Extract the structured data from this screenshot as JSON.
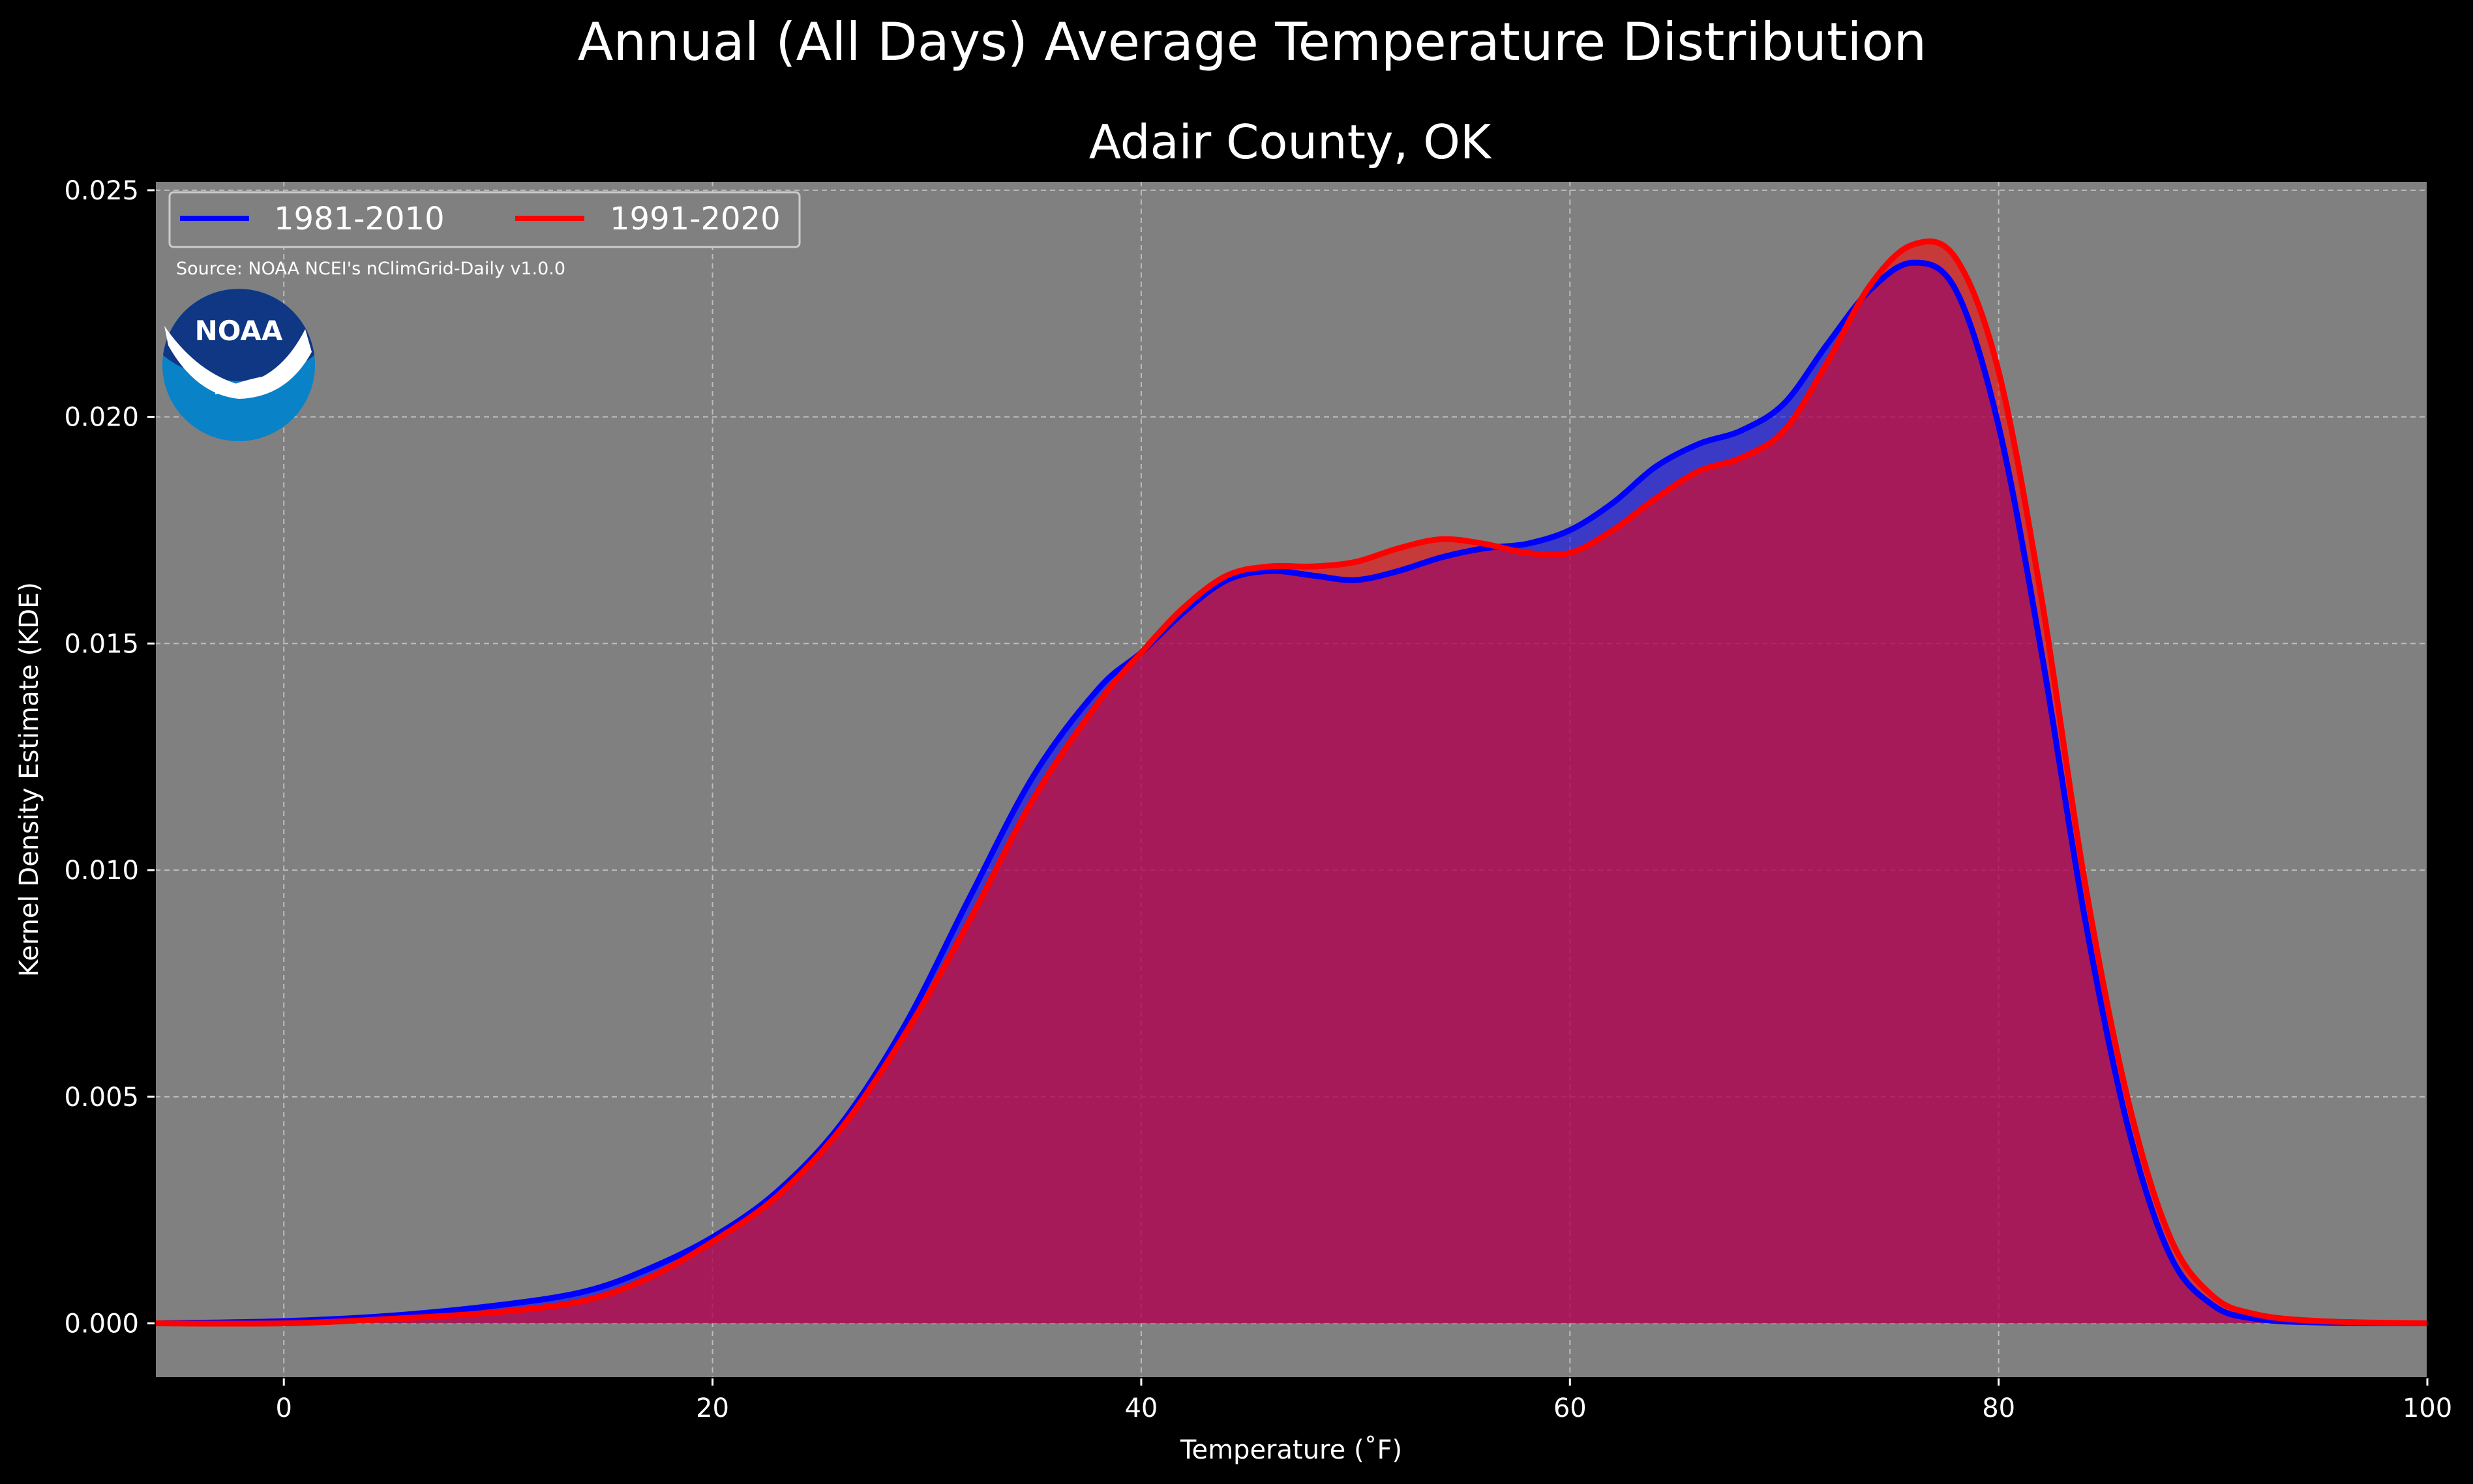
{
  "chart_data": {
    "type": "area",
    "title": "Annual (All Days) Average Temperature Distribution",
    "subtitle": "Adair County, OK",
    "xlabel": "Temperature (˚F)",
    "ylabel": "Kernel Density Estimate (KDE)",
    "xlim": [
      -6,
      100
    ],
    "ylim": [
      -0.0012,
      0.0252
    ],
    "xticks": [
      0,
      20,
      40,
      60,
      80,
      100
    ],
    "yticks": [
      "0.000",
      "0.005",
      "0.010",
      "0.015",
      "0.020",
      "0.025"
    ],
    "grid": true,
    "legend_position": "top-left",
    "source": "Source: NOAA NCEI's nClimGrid-Daily v1.0.0",
    "logo_text": "NOAA",
    "background_color": "#808080",
    "series": [
      {
        "name": "1981-2010",
        "color": "#0000ff",
        "fill": "#0000ff",
        "x": [
          -6,
          0,
          5,
          10,
          14,
          17,
          20,
          23,
          26,
          29,
          32,
          35,
          38,
          40,
          42,
          44,
          46,
          48,
          50,
          52,
          54,
          56,
          58,
          60,
          62,
          64,
          66,
          68,
          70,
          72,
          74,
          76,
          78,
          80,
          82,
          84,
          86,
          88,
          90,
          92,
          95,
          100
        ],
        "y": [
          0.0,
          5e-05,
          0.00017,
          0.0004,
          0.0007,
          0.0012,
          0.0019,
          0.0029,
          0.0044,
          0.0066,
          0.0094,
          0.0121,
          0.014,
          0.0148,
          0.0157,
          0.0164,
          0.0166,
          0.0165,
          0.0164,
          0.0166,
          0.0169,
          0.0171,
          0.0172,
          0.0175,
          0.0181,
          0.0189,
          0.0194,
          0.0197,
          0.0203,
          0.0216,
          0.0228,
          0.0234,
          0.0228,
          0.0198,
          0.0148,
          0.009,
          0.0044,
          0.0015,
          0.0004,
          0.0001,
          2e-05,
          0.0
        ]
      },
      {
        "name": "1991-2020",
        "color": "#ff0000",
        "fill": "#ff0000",
        "x": [
          -6,
          0,
          5,
          10,
          14,
          17,
          20,
          23,
          26,
          29,
          32,
          35,
          38,
          40,
          42,
          44,
          46,
          48,
          50,
          52,
          54,
          56,
          58,
          60,
          62,
          64,
          66,
          68,
          70,
          72,
          74,
          76,
          78,
          80,
          82,
          84,
          86,
          88,
          90,
          92,
          95,
          100
        ],
        "y": [
          0.0,
          0.0,
          0.0001,
          0.00025,
          0.0005,
          0.001,
          0.0018,
          0.0028,
          0.0043,
          0.0064,
          0.0089,
          0.0116,
          0.0137,
          0.0148,
          0.0158,
          0.0165,
          0.0167,
          0.0167,
          0.0168,
          0.0171,
          0.0173,
          0.0172,
          0.017,
          0.017,
          0.0175,
          0.0182,
          0.0188,
          0.0191,
          0.0197,
          0.0212,
          0.0229,
          0.0238,
          0.0235,
          0.021,
          0.016,
          0.0098,
          0.005,
          0.0019,
          0.0006,
          0.0002,
          5e-05,
          0.0
        ]
      }
    ]
  }
}
